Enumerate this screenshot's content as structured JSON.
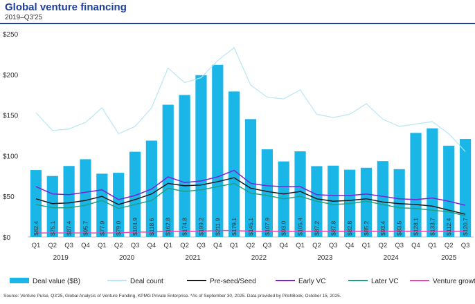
{
  "header": {
    "title": "Global venture financing",
    "subtitle": "2019–Q3'25"
  },
  "footer": {
    "source": "Source: Venture Pulse, Q3'25, Global Analysis of Venture Funding, KPMG Private Enterprise. *As of September 30, 2025. Data provided by PitchBook, October 15, 2025."
  },
  "colors": {
    "deal_value": "#1bb6e8",
    "deal_count": "#b8e6f4",
    "pre_seed": "#1a1a1a",
    "early_vc": "#7b22d4",
    "later_vc": "#1f9f82",
    "venture_growth": "#ee44b2",
    "axis": "#bbbbbb"
  },
  "chart_data": {
    "type": "bar",
    "title": "Global venture financing",
    "subtitle": "2019–Q3'25",
    "categories": [
      "Q1",
      "Q2",
      "Q3",
      "Q4",
      "Q1",
      "Q2",
      "Q3",
      "Q4",
      "Q1",
      "Q2",
      "Q3",
      "Q4",
      "Q1",
      "Q2",
      "Q3",
      "Q4",
      "Q1",
      "Q2",
      "Q3",
      "Q4",
      "Q1",
      "Q2",
      "Q3",
      "Q4",
      "Q1",
      "Q2",
      "Q3"
    ],
    "years": [
      {
        "label": "2019",
        "start": 0,
        "end": 3
      },
      {
        "label": "2020",
        "start": 4,
        "end": 7
      },
      {
        "label": "2021",
        "start": 8,
        "end": 11
      },
      {
        "label": "2022",
        "start": 12,
        "end": 15
      },
      {
        "label": "2023",
        "start": 16,
        "end": 19
      },
      {
        "label": "2024",
        "start": 20,
        "end": 23
      },
      {
        "label": "2025",
        "start": 24,
        "end": 26
      }
    ],
    "ylim": [
      0,
      250
    ],
    "yticks": [
      0,
      50,
      100,
      150,
      200,
      250
    ],
    "ytick_labels": [
      "$0",
      "$50",
      "$100",
      "$150",
      "$200",
      "$250"
    ],
    "value_labels": [
      "$82.4",
      "$75.1",
      "$87.4",
      "$95.7",
      "$77.9",
      "$79.0",
      "$104.9",
      "$118.6",
      "$162.8",
      "$174.8",
      "$199.2",
      "$211.9",
      "$179.1",
      "$145.1",
      "$107.9",
      "$93.0",
      "$105.4",
      "$87.2",
      "$87.8",
      "$82.8",
      "$85.2",
      "$93.4",
      "$83.5",
      "$128.1",
      "$133.7",
      "$112.4",
      "$120.7"
    ],
    "series": [
      {
        "name": "Deal value ($B)",
        "type": "bar",
        "values": [
          82.4,
          75.1,
          87.4,
          95.7,
          77.9,
          79.0,
          104.9,
          118.6,
          162.8,
          174.8,
          199.2,
          211.9,
          179.1,
          145.1,
          107.9,
          93.0,
          105.4,
          87.2,
          87.8,
          82.8,
          85.2,
          93.4,
          83.5,
          128.1,
          133.7,
          112.4,
          120.7
        ]
      },
      {
        "name": "Deal count",
        "type": "line",
        "values": [
          153,
          131,
          133,
          141,
          159,
          127,
          136,
          159,
          208,
          190,
          196,
          217,
          233,
          187,
          172,
          170,
          181,
          151,
          147,
          151,
          164,
          145,
          136,
          139,
          142,
          127,
          105
        ]
      },
      {
        "name": "Pre-seed/Seed",
        "type": "line",
        "values": [
          47,
          41,
          42,
          45,
          50,
          40,
          46,
          53,
          66,
          63,
          64,
          68,
          73,
          60,
          56,
          53,
          56,
          47,
          44,
          45,
          47,
          43,
          41,
          40,
          38,
          33,
          28
        ]
      },
      {
        "name": "Early VC",
        "type": "line",
        "values": [
          62,
          53,
          52,
          55,
          58,
          46,
          51,
          59,
          74,
          67,
          69,
          74,
          82,
          66,
          63,
          62,
          62,
          52,
          51,
          51,
          53,
          50,
          47,
          46,
          48,
          44,
          39
        ]
      },
      {
        "name": "Later VC",
        "type": "line",
        "values": [
          40,
          36,
          36,
          39,
          45,
          35,
          40,
          45,
          60,
          56,
          58,
          62,
          66,
          54,
          51,
          47,
          50,
          44,
          40,
          41,
          44,
          40,
          36,
          35,
          33,
          31,
          26
        ]
      },
      {
        "name": "Venture growth",
        "type": "line",
        "values": [
          5,
          5,
          5,
          5,
          5,
          5,
          6,
          6,
          7,
          7,
          7,
          8,
          8,
          7,
          7,
          7,
          7,
          7,
          7,
          7,
          7,
          7,
          7,
          7,
          7,
          7,
          7
        ]
      }
    ],
    "legend": [
      "Deal value ($B)",
      "Deal count",
      "Pre-seed/Seed",
      "Early VC",
      "Later VC",
      "Venture growth"
    ],
    "legend_position": "bottom",
    "xlabel": "",
    "ylabel": "",
    "grid": false
  }
}
